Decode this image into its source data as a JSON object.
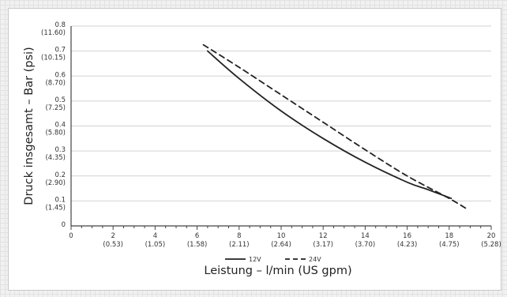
{
  "chart_data": {
    "type": "line",
    "title": "",
    "xlabel": "Leistung – l/min (US gpm)",
    "ylabel": "Druck insgesamt – Bar (psi)",
    "xlim": [
      0,
      20
    ],
    "ylim": [
      0,
      0.8
    ],
    "grid": "horizontal",
    "legend": "bottom-center",
    "x_ticks": [
      {
        "value": 0,
        "label": "0",
        "sub": ""
      },
      {
        "value": 2,
        "label": "2",
        "sub": "(0.53)"
      },
      {
        "value": 4,
        "label": "4",
        "sub": "(1.05)"
      },
      {
        "value": 6,
        "label": "6",
        "sub": "(1.58)"
      },
      {
        "value": 8,
        "label": "8",
        "sub": "(2.11)"
      },
      {
        "value": 10,
        "label": "10",
        "sub": "(2.64)"
      },
      {
        "value": 12,
        "label": "12",
        "sub": "(3.17)"
      },
      {
        "value": 14,
        "label": "14",
        "sub": "(3.70)"
      },
      {
        "value": 16,
        "label": "16",
        "sub": "(4.23)"
      },
      {
        "value": 18,
        "label": "18",
        "sub": "(4.75)"
      },
      {
        "value": 20,
        "label": "20",
        "sub": "(5.28)"
      }
    ],
    "y_ticks": [
      {
        "value": 0,
        "label": "0",
        "sub": ""
      },
      {
        "value": 0.1,
        "label": "0.1",
        "sub": "(1.45)"
      },
      {
        "value": 0.2,
        "label": "0.2",
        "sub": "(2.90)"
      },
      {
        "value": 0.3,
        "label": "0.3",
        "sub": "(4.35)"
      },
      {
        "value": 0.4,
        "label": "0.4",
        "sub": "(5.80)"
      },
      {
        "value": 0.5,
        "label": "0.5",
        "sub": "(7.25)"
      },
      {
        "value": 0.6,
        "label": "0.6",
        "sub": "(8.70)"
      },
      {
        "value": 0.7,
        "label": "0.7",
        "sub": "(10.15)"
      },
      {
        "value": 0.8,
        "label": "0.8",
        "sub": "(11.60)"
      }
    ],
    "series": [
      {
        "name": "12V",
        "style": "solid",
        "color": "#222222",
        "points": [
          [
            6.5,
            0.7
          ],
          [
            8,
            0.59
          ],
          [
            10,
            0.46
          ],
          [
            12,
            0.35
          ],
          [
            14,
            0.255
          ],
          [
            16,
            0.175
          ],
          [
            17,
            0.145
          ],
          [
            18.1,
            0.11
          ]
        ]
      },
      {
        "name": "24V",
        "style": "dashed",
        "color": "#222222",
        "points": [
          [
            6.3,
            0.725
          ],
          [
            8,
            0.635
          ],
          [
            10,
            0.525
          ],
          [
            12,
            0.415
          ],
          [
            14,
            0.305
          ],
          [
            16,
            0.2
          ],
          [
            18,
            0.11
          ],
          [
            18.9,
            0.065
          ]
        ]
      }
    ]
  }
}
